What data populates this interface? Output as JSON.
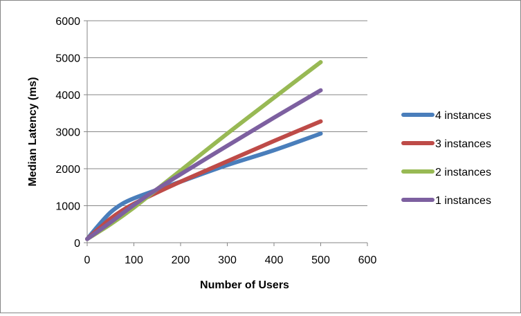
{
  "chart_data": {
    "type": "line",
    "title": "",
    "xlabel": "Number of Users",
    "ylabel": "Median Latency (ms)",
    "xlim": [
      0,
      600
    ],
    "ylim": [
      0,
      6000
    ],
    "xticks": [
      0,
      100,
      200,
      300,
      400,
      500,
      600
    ],
    "yticks": [
      0,
      1000,
      2000,
      3000,
      4000,
      5000,
      6000
    ],
    "grid": "horizontal",
    "legend": "right",
    "series": [
      {
        "name": "4 instances",
        "color": "#4a7ebb",
        "x": [
          0,
          25,
          50,
          75,
          100,
          150,
          200,
          300,
          400,
          500
        ],
        "y": [
          100,
          480,
          820,
          1050,
          1200,
          1430,
          1650,
          2100,
          2500,
          2950
        ]
      },
      {
        "name": "3 instances",
        "color": "#be4b48",
        "x": [
          0,
          25,
          50,
          75,
          100,
          150,
          200,
          300,
          400,
          500
        ],
        "y": [
          100,
          380,
          650,
          870,
          1050,
          1360,
          1650,
          2200,
          2750,
          3280
        ]
      },
      {
        "name": "2 instances",
        "color": "#98b954",
        "x": [
          0,
          50,
          100,
          150,
          200,
          300,
          400,
          500
        ],
        "y": [
          100,
          500,
          950,
          1450,
          1950,
          2950,
          3920,
          4880
        ]
      },
      {
        "name": "1 instances",
        "color": "#7d60a0",
        "x": [
          0,
          50,
          100,
          150,
          200,
          300,
          400,
          500
        ],
        "y": [
          100,
          550,
          1020,
          1450,
          1850,
          2620,
          3380,
          4120
        ]
      }
    ]
  }
}
